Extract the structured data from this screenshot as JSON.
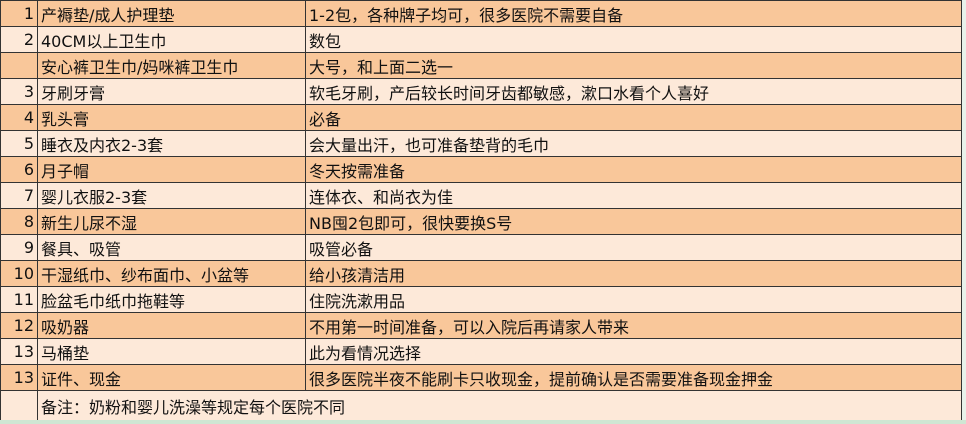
{
  "rows": [
    {
      "no": "1",
      "item": "产褥垫/成人护理垫",
      "note": "1-2包，各种牌子均可，很多医院不需要自备"
    },
    {
      "no": "2",
      "item": "40CM以上卫生巾",
      "note": "数包"
    },
    {
      "no": "",
      "item": "安心裤卫生巾/妈咪裤卫生巾",
      "note": "大号，和上面二选一"
    },
    {
      "no": "3",
      "item": "牙刷牙膏",
      "note": "软毛牙刷，产后较长时间牙齿都敏感，漱口水看个人喜好"
    },
    {
      "no": "4",
      "item": "乳头膏",
      "note": "必备"
    },
    {
      "no": "5",
      "item": "睡衣及内衣2-3套",
      "note": "会大量出汗，也可准备垫背的毛巾"
    },
    {
      "no": "6",
      "item": "月子帽",
      "note": "冬天按需准备"
    },
    {
      "no": "7",
      "item": "婴儿衣服2-3套",
      "note": "连体衣、和尚衣为佳"
    },
    {
      "no": "8",
      "item": "新生儿尿不湿",
      "note": "NB囤2包即可，很快要换S号"
    },
    {
      "no": "9",
      "item": "餐具、吸管",
      "note": "吸管必备"
    },
    {
      "no": "10",
      "item": "干湿纸巾、纱布面巾、小盆等",
      "note": "给小孩清洁用"
    },
    {
      "no": "11",
      "item": "脸盆毛巾纸巾拖鞋等",
      "note": "住院洗漱用品"
    },
    {
      "no": "12",
      "item": "吸奶器",
      "note": "不用第一时间准备，可以入院后再请家人带来"
    },
    {
      "no": "13",
      "item": "马桶垫",
      "note": "此为看情况选择"
    },
    {
      "no": "13",
      "item": "证件、现金",
      "note": "很多医院半夜不能刷卡只收现金，提前确认是否需要准备现金押金"
    }
  ],
  "footer_note": "备注：奶粉和婴儿洗澡等规定每个医院不同",
  "colors": {
    "orange_row": "#f9c79a",
    "light_row": "#fde9d9"
  }
}
